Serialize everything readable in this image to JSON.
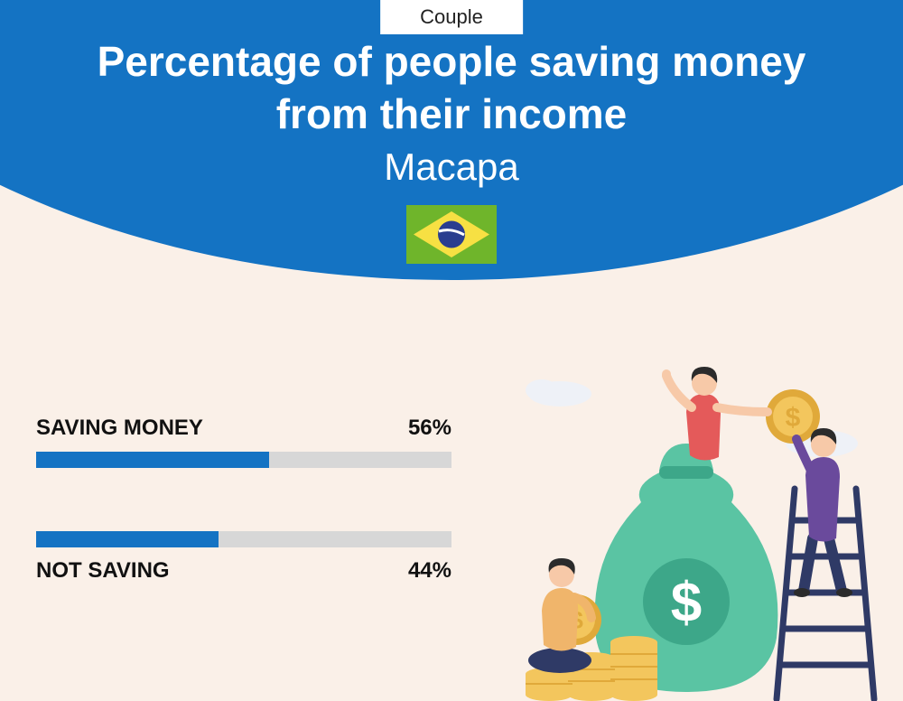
{
  "tag": "Couple",
  "title": "Percentage of people saving money from their income",
  "subtitle": "Macapa",
  "header_bg": "#1473c3",
  "page_bg": "#faf0e8",
  "flag": {
    "bg": "#6fb52b",
    "diamond": "#f7e043",
    "circle": "#2a3e8f"
  },
  "bars": [
    {
      "label": "SAVING MONEY",
      "value_text": "56%",
      "value": 56,
      "label_position": "above",
      "fill_color": "#1473c3",
      "track_color": "#d7d7d7",
      "text_color": "#111111",
      "font_size": 24,
      "font_weight": 800
    },
    {
      "label": "NOT SAVING",
      "value_text": "44%",
      "value": 44,
      "label_position": "below",
      "fill_color": "#1473c3",
      "track_color": "#d7d7d7",
      "text_color": "#111111",
      "font_size": 24,
      "font_weight": 800
    }
  ],
  "illustration": {
    "bag_color": "#5ac4a3",
    "bag_dark": "#3da789",
    "coin_color": "#f3c65d",
    "coin_dark": "#e0a93a",
    "person1_shirt": "#f0b56b",
    "person1_pants": "#2f3a66",
    "person2_shirt": "#e45a5a",
    "person2_pants": "#2f3a66",
    "person3_shirt": "#6a4a9c",
    "person3_pants": "#2f3a66",
    "skin": "#f7c9a8",
    "hair": "#2b2b2b",
    "ladder": "#2f3a66",
    "cloud": "#eef1f7",
    "dollar": "#ffffff"
  }
}
